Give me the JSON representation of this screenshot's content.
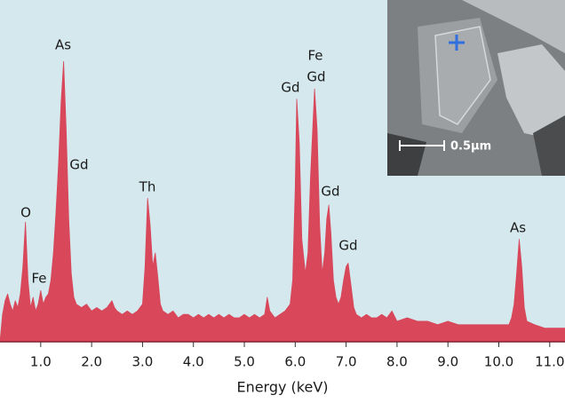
{
  "chart_data": {
    "type": "area",
    "x_label": "Energy (keV)",
    "color": "#d8475a",
    "background": "#d4e8ee",
    "xlim": [
      0.2,
      11.3
    ],
    "ylim": [
      0,
      100
    ],
    "xticks": [
      {
        "value": 1,
        "label": "1.0"
      },
      {
        "value": 2,
        "label": "2.0"
      },
      {
        "value": 3,
        "label": "3.0"
      },
      {
        "value": 4,
        "label": "4.0"
      },
      {
        "value": 5,
        "label": "5.0"
      },
      {
        "value": 6,
        "label": "6.0"
      },
      {
        "value": 7,
        "label": "7.0"
      },
      {
        "value": 8,
        "label": "8.0"
      },
      {
        "value": 9,
        "label": "9.0"
      },
      {
        "value": 10,
        "label": "10.0"
      },
      {
        "value": 11,
        "label": "11.0"
      }
    ],
    "x": [
      0.2,
      0.25,
      0.3,
      0.35,
      0.4,
      0.45,
      0.5,
      0.55,
      0.6,
      0.65,
      0.7,
      0.75,
      0.8,
      0.85,
      0.9,
      0.95,
      1.0,
      1.05,
      1.1,
      1.15,
      1.2,
      1.25,
      1.3,
      1.35,
      1.4,
      1.45,
      1.5,
      1.55,
      1.6,
      1.65,
      1.7,
      1.8,
      1.9,
      2.0,
      2.1,
      2.2,
      2.3,
      2.4,
      2.45,
      2.5,
      2.6,
      2.7,
      2.8,
      2.9,
      3.0,
      3.05,
      3.1,
      3.15,
      3.2,
      3.25,
      3.3,
      3.35,
      3.4,
      3.5,
      3.6,
      3.7,
      3.8,
      3.9,
      4.0,
      4.1,
      4.2,
      4.3,
      4.4,
      4.5,
      4.6,
      4.7,
      4.8,
      4.9,
      5.0,
      5.1,
      5.2,
      5.3,
      5.4,
      5.45,
      5.5,
      5.6,
      5.7,
      5.8,
      5.9,
      5.95,
      6.0,
      6.03,
      6.08,
      6.13,
      6.2,
      6.25,
      6.3,
      6.38,
      6.43,
      6.48,
      6.53,
      6.58,
      6.62,
      6.66,
      6.7,
      6.75,
      6.8,
      6.85,
      6.9,
      6.95,
      7.0,
      7.04,
      7.1,
      7.15,
      7.2,
      7.3,
      7.4,
      7.5,
      7.6,
      7.7,
      7.8,
      7.9,
      8.0,
      8.2,
      8.4,
      8.6,
      8.8,
      9.0,
      9.2,
      9.4,
      9.6,
      9.8,
      10.0,
      10.2,
      10.25,
      10.3,
      10.35,
      10.4,
      10.45,
      10.5,
      10.55,
      10.7,
      10.9,
      11.1,
      11.3
    ],
    "values": [
      0,
      8,
      12,
      14,
      11,
      9,
      12,
      10,
      14,
      22,
      35,
      18,
      10,
      13,
      9,
      11,
      15,
      11,
      13,
      14,
      18,
      26,
      38,
      52,
      70,
      82,
      62,
      36,
      20,
      13,
      11,
      10,
      11,
      9,
      10,
      9,
      10,
      12,
      10,
      9,
      8,
      9,
      8,
      9,
      11,
      22,
      42,
      34,
      22,
      26,
      19,
      11,
      9,
      8,
      9,
      7,
      8,
      8,
      7,
      8,
      7,
      8,
      7,
      8,
      7,
      8,
      7,
      7,
      8,
      7,
      8,
      7,
      8,
      13,
      9,
      7,
      8,
      9,
      11,
      18,
      45,
      71,
      58,
      30,
      20,
      26,
      48,
      74,
      62,
      34,
      20,
      26,
      36,
      40,
      32,
      18,
      13,
      11,
      13,
      18,
      22,
      23,
      16,
      10,
      8,
      7,
      8,
      7,
      7,
      8,
      7,
      9,
      6,
      7,
      6,
      6,
      5,
      6,
      5,
      5,
      5,
      5,
      5,
      5,
      7,
      11,
      20,
      30,
      22,
      10,
      6,
      5,
      4,
      4,
      4
    ],
    "annotations": [
      "O",
      "Fe",
      "As",
      "Gd",
      "Th",
      "Gd",
      "Fe",
      "Gd",
      "Gd",
      "Gd",
      "As"
    ]
  },
  "inset": {
    "scale_bar_label": "0.5μm"
  }
}
